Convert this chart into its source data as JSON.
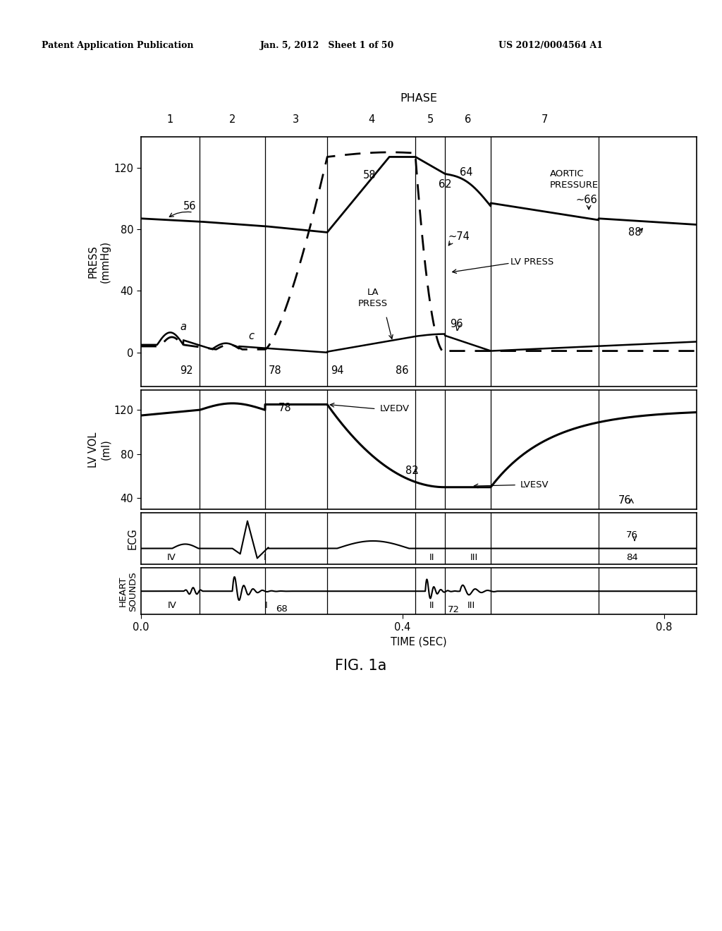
{
  "header_left": "Patent Application Publication",
  "header_mid": "Jan. 5, 2012   Sheet 1 of 50",
  "header_right": "US 2012/0004564 A1",
  "fig_label": "FIG. 1a",
  "phase_label": "PHASE",
  "phase_lines_x": [
    0.09,
    0.19,
    0.285,
    0.42,
    0.465,
    0.535,
    0.7
  ],
  "phase_numbers": [
    "1",
    "2",
    "3",
    "4",
    "5",
    "6",
    "7"
  ],
  "time_label": "TIME (SEC)",
  "time_ticks": [
    0.0,
    0.4,
    0.8
  ],
  "xlim": [
    0.0,
    0.85
  ],
  "press_yticks": [
    0,
    40,
    80,
    120
  ],
  "press_ylim": [
    -22,
    140
  ],
  "lvvol_yticks": [
    40,
    80,
    120
  ],
  "lvvol_ylim": [
    30,
    138
  ],
  "bg": "#ffffff"
}
